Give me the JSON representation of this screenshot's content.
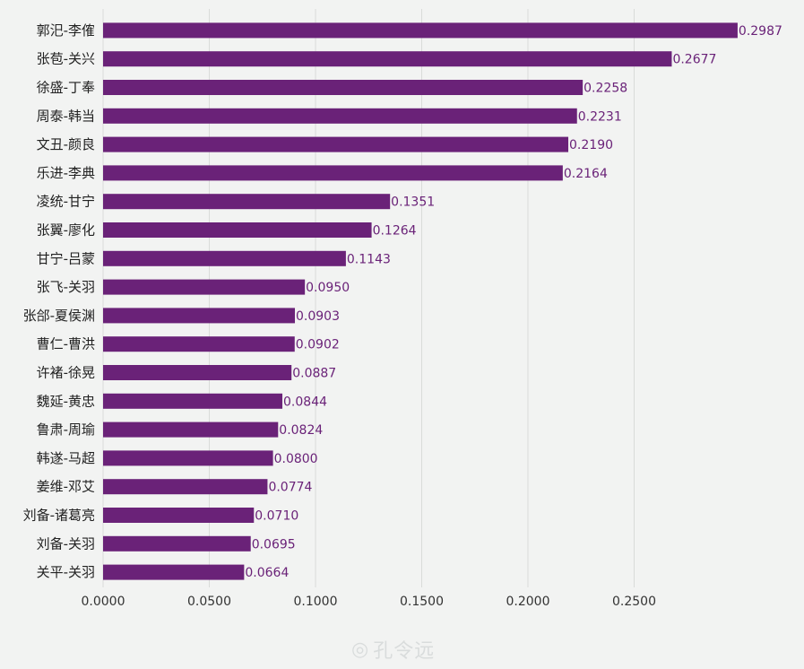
{
  "chart_data": {
    "type": "bar",
    "orientation": "horizontal",
    "categories": [
      "郭汜-李傕",
      "张苞-关兴",
      "徐盛-丁奉",
      "周泰-韩当",
      "文丑-颜良",
      "乐进-李典",
      "凌统-甘宁",
      "张翼-廖化",
      "甘宁-吕蒙",
      "张飞-关羽",
      "张郃-夏侯渊",
      "曹仁-曹洪",
      "许褚-徐晃",
      "魏延-黄忠",
      "鲁肃-周瑜",
      "韩遂-马超",
      "姜维-邓艾",
      "刘备-诸葛亮",
      "刘备-关羽",
      "关平-关羽"
    ],
    "values": [
      0.2987,
      0.2677,
      0.2258,
      0.2231,
      0.219,
      0.2164,
      0.1351,
      0.1264,
      0.1143,
      0.095,
      0.0903,
      0.0902,
      0.0887,
      0.0844,
      0.0824,
      0.08,
      0.0774,
      0.071,
      0.0695,
      0.0664
    ],
    "value_labels": [
      "0.2987",
      "0.2677",
      "0.2258",
      "0.2231",
      "0.2190",
      "0.2164",
      "0.1351",
      "0.1264",
      "0.1143",
      "0.0950",
      "0.0903",
      "0.0902",
      "0.0887",
      "0.0844",
      "0.0824",
      "0.0800",
      "0.0774",
      "0.0710",
      "0.0695",
      "0.0664"
    ],
    "x_ticks": [
      "0.0000",
      "0.0500",
      "0.1000",
      "0.1500",
      "0.2000",
      "0.2500"
    ],
    "xlim": [
      0,
      0.3
    ],
    "grid": "vertical",
    "bar_color": "#6a2278",
    "value_label_color": "#6a2278"
  },
  "watermark": {
    "icon": "weibo-icon",
    "text": "孔令远"
  }
}
